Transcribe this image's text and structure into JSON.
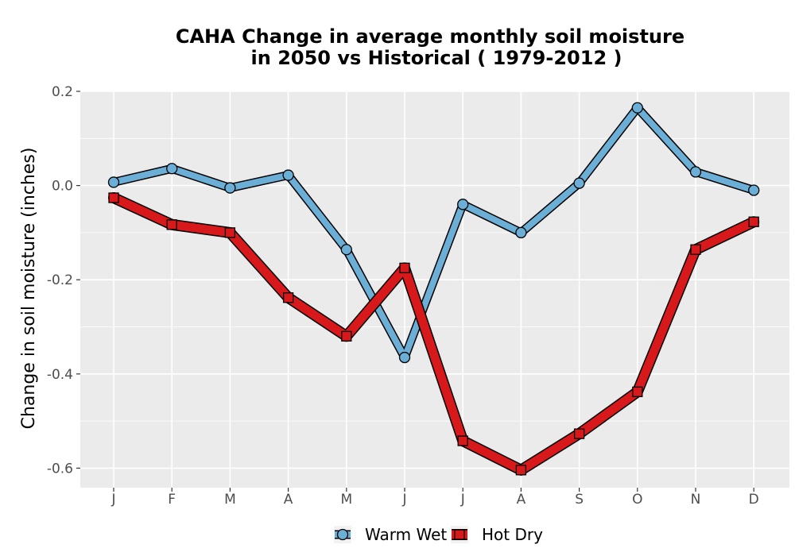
{
  "chart_data": {
    "type": "line",
    "title_line1": "CAHA  Change in average monthly soil moisture",
    "title_line2": "in 2050 vs Historical ( 1979-2012 )",
    "ylabel": "Change in soil moisture (inches)",
    "xlabel": "",
    "categories": [
      "J",
      "F",
      "M",
      "A",
      "M",
      "J",
      "J",
      "A",
      "S",
      "O",
      "N",
      "D"
    ],
    "ylim": [
      -0.64,
      0.2
    ],
    "yticks": [
      -0.6,
      -0.4,
      -0.2,
      0.0,
      0.2
    ],
    "ytick_labels": [
      "-0.6",
      "-0.4",
      "-0.2",
      "0.0",
      "0.2"
    ],
    "grid": true,
    "legend_position": "bottom",
    "series": [
      {
        "name": "Warm Wet",
        "color": "#6baed6",
        "marker": "circle",
        "values": [
          0.007,
          0.036,
          -0.005,
          0.022,
          -0.136,
          -0.365,
          -0.04,
          -0.1,
          0.005,
          0.165,
          0.029,
          -0.01
        ]
      },
      {
        "name": "Hot Dry",
        "color": "#d7191c",
        "marker": "square",
        "values": [
          -0.026,
          -0.083,
          -0.1,
          -0.238,
          -0.32,
          -0.175,
          -0.542,
          -0.604,
          -0.527,
          -0.438,
          -0.136,
          -0.077
        ]
      }
    ]
  }
}
